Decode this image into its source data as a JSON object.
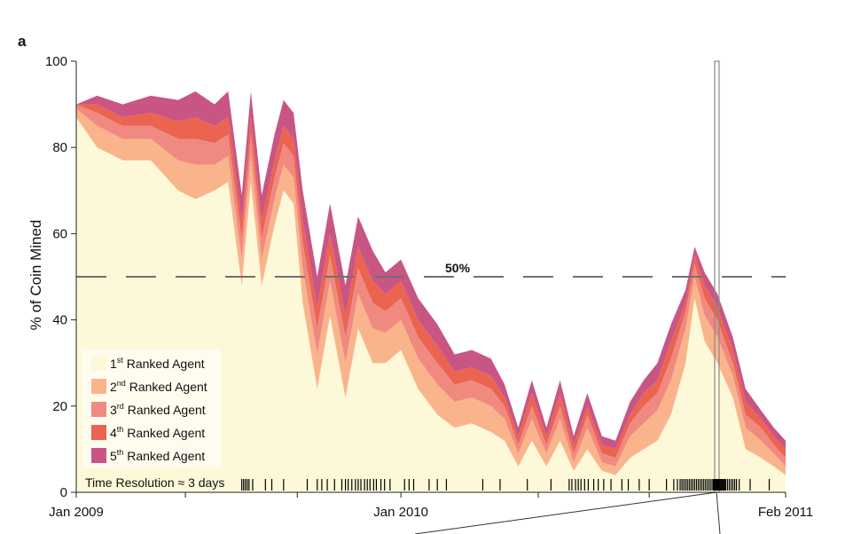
{
  "panel_label": "a",
  "chart_data": {
    "type": "area",
    "stacked": true,
    "title": "",
    "xlabel": "",
    "ylabel": "% of Coin Mined",
    "ylim": [
      0,
      100
    ],
    "xlim": [
      "2009-01-09",
      "2011-02-28"
    ],
    "yticks": [
      0,
      20,
      40,
      60,
      80,
      100
    ],
    "xticks": [
      {
        "date": "2009-01-09",
        "label": "Jan 2009"
      },
      {
        "date": "2009-05-09",
        "label": ""
      },
      {
        "date": "2009-09-09",
        "label": ""
      },
      {
        "date": "2010-01-01",
        "label": "Jan 2010"
      },
      {
        "date": "2010-06-01",
        "label": ""
      },
      {
        "date": "2010-10-01",
        "label": ""
      },
      {
        "date": "2011-02-28",
        "label": "Feb 2011"
      }
    ],
    "x": [
      "2009-01-09",
      "2009-02-01",
      "2009-03-01",
      "2009-04-01",
      "2009-05-01",
      "2009-05-20",
      "2009-06-10",
      "2009-06-25",
      "2009-07-10",
      "2009-07-20",
      "2009-08-01",
      "2009-08-15",
      "2009-08-25",
      "2009-09-05",
      "2009-09-15",
      "2009-10-01",
      "2009-10-15",
      "2009-11-01",
      "2009-11-15",
      "2009-12-01",
      "2009-12-15",
      "2010-01-01",
      "2010-01-20",
      "2010-02-10",
      "2010-03-01",
      "2010-03-20",
      "2010-04-10",
      "2010-04-25",
      "2010-05-10",
      "2010-05-25",
      "2010-06-10",
      "2010-06-25",
      "2010-07-10",
      "2010-07-25",
      "2010-08-10",
      "2010-08-25",
      "2010-09-10",
      "2010-09-25",
      "2010-10-10",
      "2010-10-25",
      "2010-11-10",
      "2010-11-20",
      "2010-12-01",
      "2010-12-15",
      "2011-01-01",
      "2011-01-15",
      "2011-02-01",
      "2011-02-15",
      "2011-02-28"
    ],
    "series": [
      {
        "name": "1st Ranked Agent",
        "color": "#fdf8d8",
        "values": [
          87,
          80,
          77,
          77,
          70,
          68,
          70,
          72,
          48,
          72,
          48,
          62,
          70,
          67,
          44,
          24,
          41,
          22,
          38,
          30,
          30,
          33,
          24,
          18,
          15,
          16,
          14,
          12,
          6,
          12,
          6,
          12,
          5,
          10,
          5,
          4,
          8,
          10,
          12,
          18,
          30,
          45,
          35,
          30,
          22,
          10,
          8,
          6,
          4
        ]
      },
      {
        "name": "2nd Ranked Agent",
        "color": "#f9b48c",
        "values": [
          2,
          5,
          5,
          5,
          7,
          8,
          6,
          6,
          6,
          6,
          6,
          6,
          6,
          6,
          8,
          8,
          8,
          8,
          8,
          8,
          7,
          7,
          7,
          7,
          6,
          6,
          6,
          5,
          3,
          5,
          3,
          5,
          2,
          5,
          2,
          2,
          5,
          6,
          7,
          8,
          8,
          5,
          6,
          6,
          5,
          5,
          4,
          3,
          2
        ]
      },
      {
        "name": "3rd Ranked Agent",
        "color": "#f08a80",
        "values": [
          1,
          3,
          3,
          3,
          5,
          6,
          5,
          5,
          5,
          5,
          5,
          5,
          5,
          5,
          6,
          6,
          6,
          6,
          6,
          6,
          5,
          5,
          5,
          5,
          4,
          4,
          4,
          3,
          2,
          3,
          2,
          3,
          2,
          3,
          2,
          2,
          3,
          4,
          4,
          5,
          4,
          3,
          4,
          4,
          3,
          3,
          3,
          2,
          2
        ]
      },
      {
        "name": "4th Ranked Agent",
        "color": "#ea6450",
        "values": [
          0,
          2,
          2,
          3,
          4,
          5,
          4,
          4,
          4,
          4,
          4,
          4,
          4,
          4,
          5,
          5,
          5,
          5,
          5,
          5,
          4,
          4,
          4,
          4,
          3,
          3,
          3,
          2,
          2,
          3,
          2,
          3,
          2,
          2,
          2,
          2,
          2,
          3,
          3,
          4,
          2,
          2,
          3,
          3,
          3,
          3,
          2,
          2,
          2
        ]
      },
      {
        "name": "5th Ranked Agent",
        "color": "#c95585",
        "values": [
          0,
          2,
          3,
          4,
          5,
          6,
          5,
          6,
          6,
          6,
          6,
          6,
          6,
          6,
          7,
          7,
          7,
          7,
          7,
          7,
          5,
          5,
          5,
          5,
          4,
          4,
          4,
          3,
          2,
          3,
          2,
          3,
          2,
          3,
          2,
          2,
          3,
          3,
          4,
          4,
          3,
          2,
          3,
          3,
          3,
          3,
          2,
          2,
          2
        ]
      }
    ],
    "reference_line": {
      "y": 50,
      "label": "50%",
      "style": "dashed",
      "color": "#707070"
    },
    "highlight_window": {
      "x_start": "2010-12-12",
      "x_end": "2010-12-16",
      "y_top": 100
    },
    "rug_dates": [
      "2009-07-10",
      "2009-07-12",
      "2009-07-14",
      "2009-07-16",
      "2009-07-18",
      "2009-07-22",
      "2009-08-05",
      "2009-08-12",
      "2009-08-25",
      "2009-09-20",
      "2009-10-01",
      "2009-10-06",
      "2009-10-12",
      "2009-10-20",
      "2009-10-28",
      "2009-11-01",
      "2009-11-04",
      "2009-11-08",
      "2009-11-12",
      "2009-11-15",
      "2009-11-18",
      "2009-11-22",
      "2009-11-25",
      "2009-11-28",
      "2009-12-02",
      "2009-12-05",
      "2009-12-10",
      "2009-12-14",
      "2009-12-20",
      "2010-01-05",
      "2010-01-10",
      "2010-01-15",
      "2010-02-01",
      "2010-02-10",
      "2010-02-20",
      "2010-04-01",
      "2010-04-20",
      "2010-05-20",
      "2010-06-15",
      "2010-07-05",
      "2010-07-08",
      "2010-07-12",
      "2010-07-15",
      "2010-07-18",
      "2010-07-22",
      "2010-07-26",
      "2010-08-01",
      "2010-08-06",
      "2010-08-12",
      "2010-08-20",
      "2010-09-01",
      "2010-09-08",
      "2010-09-20",
      "2010-10-01",
      "2010-10-20",
      "2010-10-28",
      "2010-11-01",
      "2010-11-04",
      "2010-11-06",
      "2010-11-08",
      "2010-11-10",
      "2010-11-12",
      "2010-11-14",
      "2010-11-16",
      "2010-11-18",
      "2010-11-20",
      "2010-11-22",
      "2010-11-24",
      "2010-11-26",
      "2010-11-28",
      "2010-11-30",
      "2010-12-02",
      "2010-12-04",
      "2010-12-06",
      "2010-12-08",
      "2010-12-10",
      "2010-12-11",
      "2010-12-12",
      "2010-12-13",
      "2010-12-14",
      "2010-12-15",
      "2010-12-16",
      "2010-12-17",
      "2010-12-18",
      "2010-12-19",
      "2010-12-20",
      "2010-12-21",
      "2010-12-22",
      "2010-12-23",
      "2010-12-24",
      "2010-12-26",
      "2010-12-28",
      "2010-12-30",
      "2011-01-01",
      "2011-01-03",
      "2011-01-05",
      "2011-01-08",
      "2011-01-20",
      "2011-02-10"
    ],
    "legend": {
      "placement": "lower-left",
      "entries": [
        {
          "ordinal": "1",
          "sup": "st",
          "text": "Ranked Agent"
        },
        {
          "ordinal": "2",
          "sup": "nd",
          "text": "Ranked Agent"
        },
        {
          "ordinal": "3",
          "sup": "rd",
          "text": "Ranked Agent"
        },
        {
          "ordinal": "4",
          "sup": "th",
          "text": "Ranked Agent"
        },
        {
          "ordinal": "5",
          "sup": "th",
          "text": "Ranked Agent"
        }
      ]
    },
    "note": "Time Resolution ≈ 3 days",
    "grid": false
  }
}
